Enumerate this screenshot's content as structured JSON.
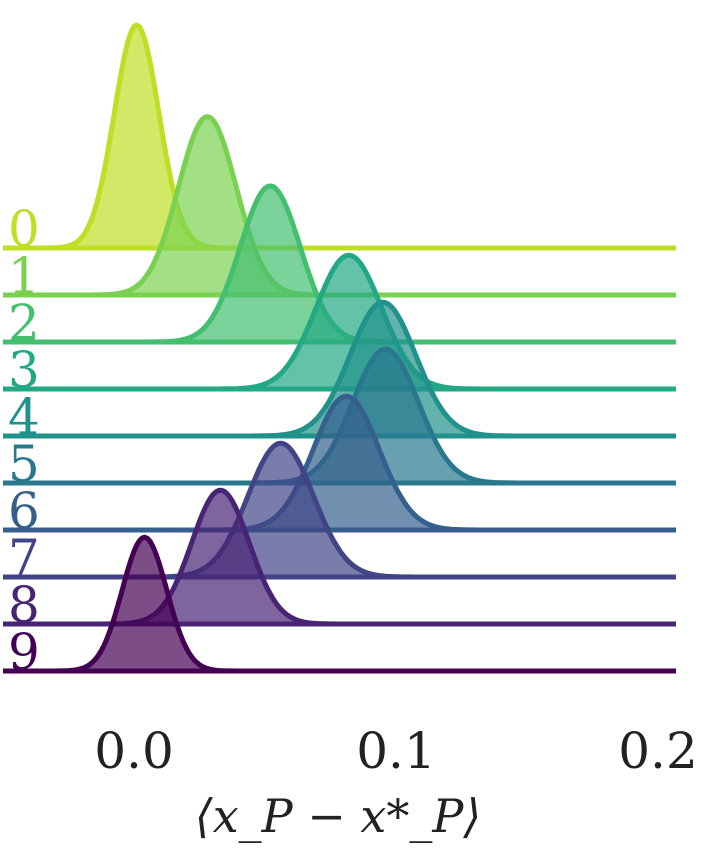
{
  "chart_data": {
    "type": "area",
    "subtype": "ridgeline",
    "title": "",
    "xlabel": "⟨x_P − x*_P⟩",
    "ylabel": "",
    "xlim": [
      -0.05,
      0.2
    ],
    "xticks": [
      {
        "value": 0.0,
        "label": "0.0"
      },
      {
        "value": 0.1,
        "label": "0.1"
      },
      {
        "value": 0.2,
        "label": "0.2"
      }
    ],
    "grid": false,
    "series": [
      {
        "name": "0",
        "mean": 0.001,
        "std": 0.0085,
        "peak": 1.0,
        "color": "#bddf26"
      },
      {
        "name": "1",
        "mean": 0.028,
        "std": 0.011,
        "peak": 0.8,
        "color": "#7ad151"
      },
      {
        "name": "2",
        "mean": 0.052,
        "std": 0.0115,
        "peak": 0.7,
        "color": "#44bf70"
      },
      {
        "name": "3",
        "mean": 0.082,
        "std": 0.0125,
        "peak": 0.6,
        "color": "#22a884"
      },
      {
        "name": "4",
        "mean": 0.095,
        "std": 0.0125,
        "peak": 0.6,
        "color": "#21918c"
      },
      {
        "name": "5",
        "mean": 0.096,
        "std": 0.0125,
        "peak": 0.6,
        "color": "#2a788e"
      },
      {
        "name": "6",
        "mean": 0.081,
        "std": 0.0125,
        "peak": 0.6,
        "color": "#355f8d"
      },
      {
        "name": "7",
        "mean": 0.056,
        "std": 0.0125,
        "peak": 0.6,
        "color": "#414487"
      },
      {
        "name": "8",
        "mean": 0.033,
        "std": 0.011,
        "peak": 0.6,
        "color": "#482475"
      },
      {
        "name": "9",
        "mean": 0.004,
        "std": 0.0085,
        "peak": 0.6,
        "color": "#440154"
      }
    ]
  }
}
